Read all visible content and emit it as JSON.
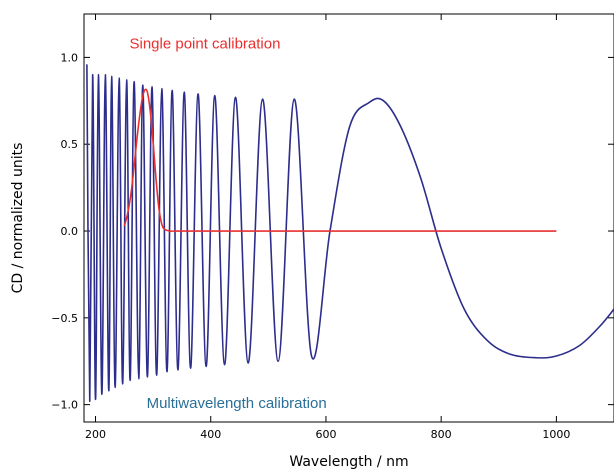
{
  "chart_data": {
    "type": "line",
    "title": "",
    "xlabel": "Wavelength / nm",
    "ylabel": "CD / normalized units",
    "xlim": [
      180,
      1100
    ],
    "ylim": [
      -1.1,
      1.25
    ],
    "x_ticks": [
      200,
      400,
      600,
      800,
      1000
    ],
    "y_ticks": [
      -1.0,
      -0.5,
      0.0,
      0.5,
      1.0
    ],
    "x_tick_labels": [
      "200",
      "400",
      "600",
      "800",
      "1000"
    ],
    "y_tick_labels": [
      "−1.0",
      "−0.5",
      "0.0",
      "0.5",
      "1.0"
    ],
    "grid": false,
    "series": [
      {
        "name": "Multiwavelength calibration",
        "color": "#2d2d8c",
        "x": [
          185,
          190,
          195,
          200,
          205,
          211,
          217,
          223,
          228,
          234,
          241,
          247,
          254,
          260,
          267,
          275,
          282,
          290,
          298,
          306,
          315,
          324,
          333,
          343,
          354,
          365,
          378,
          392,
          407,
          424,
          443,
          465,
          490,
          517,
          545,
          575,
          607,
          641,
          675,
          700,
          730,
          765,
          800,
          840,
          880,
          920,
          965,
          1000,
          1040,
          1075,
          1100
        ],
        "y": [
          0.96,
          -0.98,
          0.9,
          -0.97,
          0.9,
          -0.94,
          0.9,
          -0.92,
          0.89,
          -0.9,
          0.88,
          -0.88,
          0.87,
          -0.86,
          0.86,
          -0.85,
          0.84,
          -0.84,
          0.83,
          -0.83,
          0.82,
          -0.81,
          0.81,
          -0.8,
          0.8,
          -0.79,
          0.79,
          -0.78,
          0.78,
          -0.77,
          0.77,
          -0.76,
          0.76,
          -0.75,
          0.76,
          -0.72,
          0.0,
          0.6,
          0.74,
          0.75,
          0.6,
          0.3,
          -0.1,
          -0.45,
          -0.63,
          -0.71,
          -0.73,
          -0.72,
          -0.66,
          -0.55,
          -0.45
        ]
      },
      {
        "name": "Single point calibration",
        "color": "#e83030",
        "x": [
          250,
          255,
          260,
          265,
          270,
          275,
          280,
          285,
          290,
          295,
          300,
          305,
          310,
          315,
          320,
          330,
          350,
          400,
          500,
          600,
          700,
          800,
          900,
          1000
        ],
        "y": [
          0.03,
          0.09,
          0.18,
          0.31,
          0.47,
          0.62,
          0.74,
          0.81,
          0.8,
          0.69,
          0.51,
          0.3,
          0.13,
          0.04,
          0.01,
          0.0,
          0.0,
          0.0,
          0.0,
          0.0,
          0.0,
          0.0,
          0.0,
          0.0
        ]
      }
    ],
    "annotations": [
      {
        "text": "Single point calibration",
        "color": "#e83030",
        "x": 390,
        "y": 1.05
      },
      {
        "text": "Multiwavelength calibration",
        "color": "#2a6f97",
        "x": 445,
        "y": -1.02
      }
    ]
  }
}
